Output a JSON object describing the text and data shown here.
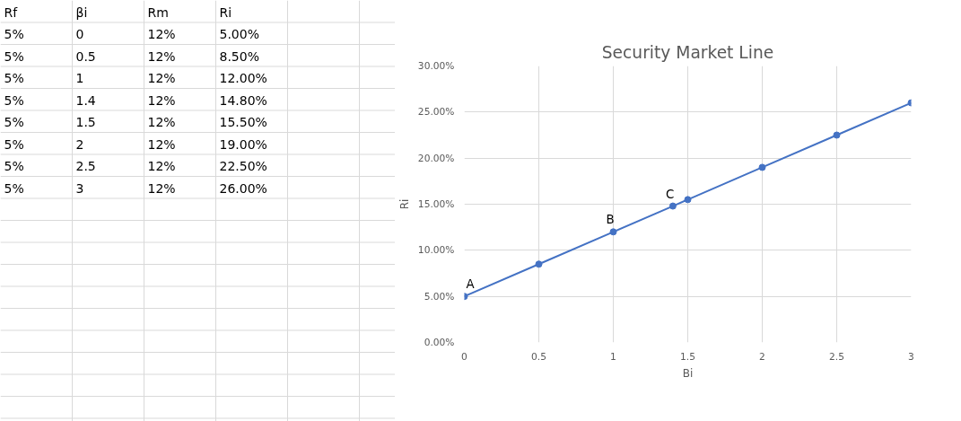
{
  "chart_data": [
    {
      "type": "other",
      "annotations": [
        "Rf",
        "βi",
        "Rm",
        "Ri",
        "5%",
        "0",
        "12%",
        "5.00%",
        "5%",
        "0.5",
        "12%",
        "8.50%",
        "5%",
        "1",
        "12%",
        "12.00%",
        "5%",
        "1.4",
        "12%",
        "14.80%",
        "5%",
        "1.5",
        "12%",
        "15.50%",
        "5%",
        "2",
        "12%",
        "19.00%",
        "5%",
        "2.5",
        "12%",
        "22.50%",
        "5%",
        "3",
        "12%",
        "26.00%"
      ]
    },
    {
      "type": "line",
      "title": "Security Market Line",
      "xlabel": "Bi",
      "ylabel": "Ri",
      "marker": "circle",
      "grid": true,
      "x": [
        0,
        0.5,
        1,
        1.4,
        1.5,
        2,
        2.5,
        3
      ],
      "series": [
        {
          "color": "#4472c4",
          "values": [
            5,
            8.5,
            12,
            14.8,
            15.5,
            19,
            22.5,
            26
          ]
        }
      ],
      "xlim": [
        0,
        3
      ],
      "xticks": [
        0,
        0.5,
        1,
        1.5,
        2,
        2.5,
        3
      ],
      "ylim": [
        0,
        30
      ],
      "yticks": [
        {
          "value": 0,
          "label": "0.00%"
        },
        {
          "value": 5,
          "label": "5.00%"
        },
        {
          "value": 10,
          "label": "10.00%"
        },
        {
          "value": 15,
          "label": "15.00%"
        },
        {
          "value": 20,
          "label": "20.00%"
        },
        {
          "value": 25,
          "label": "25.00%"
        },
        {
          "value": 30,
          "label": "30.00%"
        }
      ],
      "annotations": [
        {
          "text": "A",
          "x": 0,
          "y": 5
        },
        {
          "text": "B",
          "x": 1,
          "y": 12
        },
        {
          "text": "C",
          "x": 1.4,
          "y": 14.8
        }
      ]
    }
  ]
}
